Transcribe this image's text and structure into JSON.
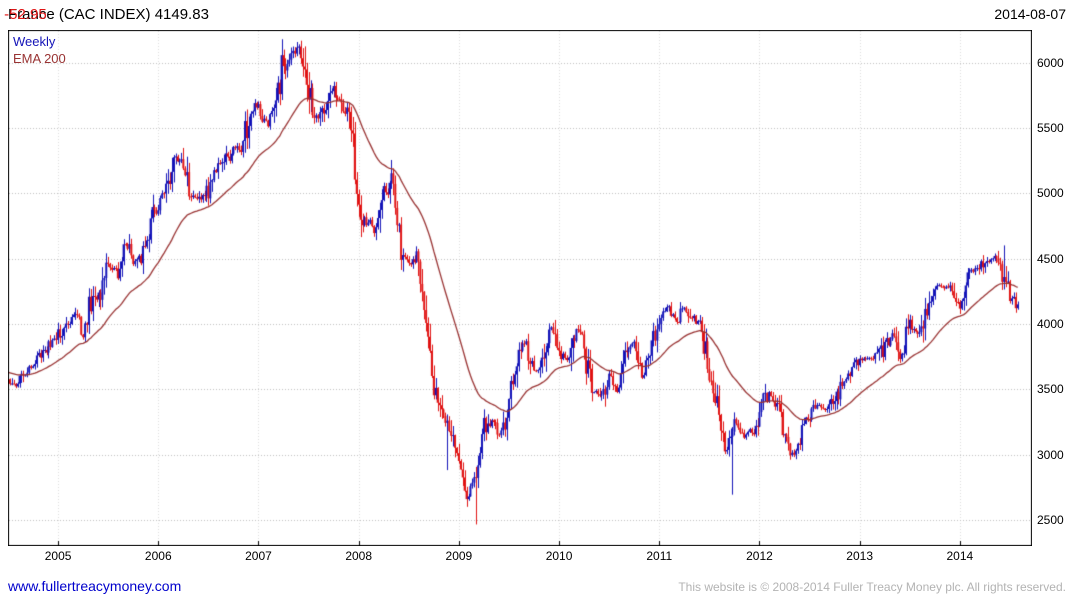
{
  "header": {
    "title": "France (CAC INDEX) 4149.83",
    "change": " -52.95",
    "date": "2014-08-07"
  },
  "legend": {
    "series": "Weekly",
    "ema": "EMA 200"
  },
  "footer": {
    "link": "www.fullertreacymoney.com",
    "copyright": "This website is © 2008-2014 Fuller Treacy Money plc. All rights reserved."
  },
  "colors": {
    "up": "#1414b8",
    "down": "#e01414",
    "ema": "#993333",
    "link": "#0000cc",
    "muted_text": "#b3b3b3",
    "grid_h": "#bdbdbd",
    "grid_v": "#dcdcdc",
    "border": "#000000"
  },
  "chart_data": {
    "type": "candlestick",
    "title": "France (CAC INDEX)",
    "bar_frequency": "weekly",
    "last_price": 4149.83,
    "change": -52.95,
    "as_of_date": "2014-08-07",
    "xlim": [
      2004.5,
      2014.72
    ],
    "ylim": [
      2300,
      6250
    ],
    "y_ticks": [
      2500,
      3000,
      3500,
      4000,
      4500,
      5000,
      5500,
      6000
    ],
    "x_ticks": [
      2005,
      2006,
      2007,
      2008,
      2009,
      2010,
      2011,
      2012,
      2013,
      2014
    ],
    "grid": true,
    "legend_position": "top-left-inside",
    "ema": {
      "label": "EMA 200",
      "period_weeks": 40,
      "color": "#993333"
    },
    "anchors": {
      "description": "Monthly close estimates read from the chart, Jul 2004 - Aug 2014",
      "start_decimal_year": 2004.5,
      "closes": [
        3600,
        3520,
        3640,
        3700,
        3750,
        3820,
        3910,
        4030,
        4070,
        3910,
        4120,
        4230,
        4450,
        4400,
        4600,
        4440,
        4570,
        4715,
        4950,
        5000,
        5220,
        5190,
        4930,
        4965,
        5040,
        5165,
        5250,
        5380,
        5330,
        5540,
        5610,
        5520,
        5630,
        5930,
        6100,
        6055,
        5750,
        5590,
        5715,
        5850,
        5595,
        5614,
        4870,
        4790,
        4700,
        5000,
        5010,
        4435,
        4400,
        4480,
        4030,
        3490,
        3260,
        3218,
        2970,
        2700,
        2800,
        3160,
        3280,
        3140,
        3430,
        3650,
        3795,
        3610,
        3680,
        3936,
        3740,
        3710,
        3970,
        3820,
        3430,
        3440,
        3640,
        3490,
        3715,
        3830,
        3610,
        3805,
        4005,
        4110,
        3990,
        4110,
        4007,
        3982,
        3672,
        3256,
        2982,
        3242,
        3155,
        3160,
        3299,
        3452,
        3424,
        3212,
        3017,
        3196,
        3291,
        3413,
        3354,
        3429,
        3557,
        3641,
        3733,
        3723,
        3731,
        3856,
        3948,
        3739,
        3993,
        3934,
        4143,
        4300,
        4295,
        4296,
        4166,
        4408,
        4392,
        4487,
        4520,
        4423,
        4246,
        4150
      ]
    },
    "extremes": [
      {
        "x": 2007.42,
        "type": "high",
        "value": 6168
      },
      {
        "x": 2008.89,
        "type": "low",
        "value": 2881
      },
      {
        "x": 2009.17,
        "type": "low",
        "value": 2465
      },
      {
        "x": 2011.73,
        "type": "low",
        "value": 2693
      },
      {
        "x": 2014.44,
        "type": "high",
        "value": 4601
      }
    ]
  }
}
